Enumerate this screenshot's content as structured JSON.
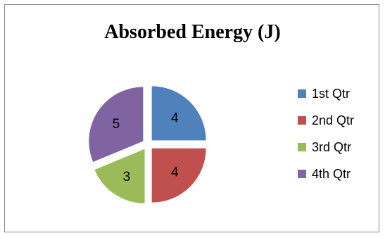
{
  "chart_data": {
    "type": "pie",
    "title": "Absorbed Energy (J)",
    "categories": [
      "1st Qtr",
      "2nd Qtr",
      "3rd Qtr",
      "4th Qtr"
    ],
    "values": [
      4,
      4,
      3,
      5
    ],
    "colors": [
      "#4f81bd",
      "#c0504d",
      "#9bbb59",
      "#8064a2"
    ],
    "exploded": true,
    "data_labels": true,
    "legend": "right"
  }
}
